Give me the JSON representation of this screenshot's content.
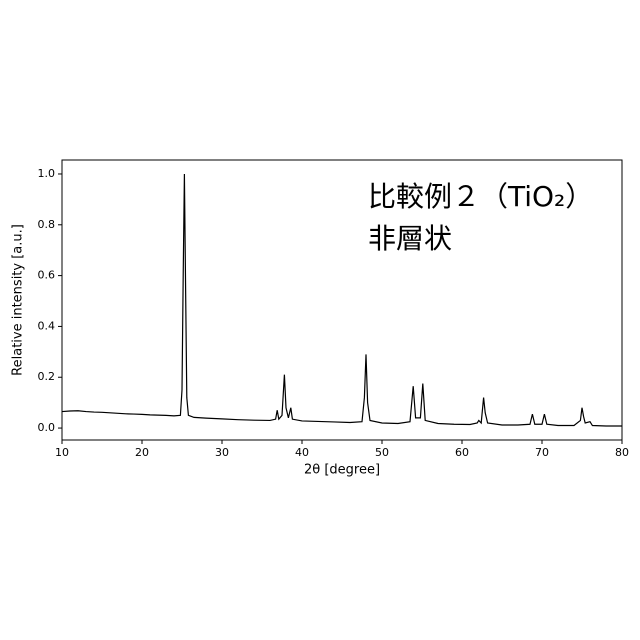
{
  "chart_data": {
    "type": "line",
    "xlabel": "2θ [degree]",
    "ylabel": "Relative intensity [a.u.]",
    "annotations": [
      "比較例２（TiO₂）",
      "非層状"
    ],
    "xlim": [
      10,
      80
    ],
    "ylim": [
      -0.047,
      1.055
    ],
    "xticks": [
      10,
      20,
      30,
      40,
      50,
      60,
      70,
      80
    ],
    "yticks": [
      {
        "value": 0,
        "label": "0.0"
      },
      0.2,
      0.4,
      0.6,
      0.8,
      {
        "value": 1,
        "label": "1.0"
      }
    ],
    "x": [
      10,
      11,
      12,
      13,
      14,
      15,
      16,
      17,
      18,
      19,
      20,
      21,
      22,
      23,
      24,
      24.8,
      25.0,
      25.15,
      25.3,
      25.45,
      25.6,
      25.8,
      26.5,
      28,
      30,
      32,
      34,
      36,
      36.7,
      36.9,
      37.1,
      37.5,
      37.8,
      38.0,
      38.3,
      38.6,
      38.8,
      40,
      42,
      44,
      46,
      47.5,
      47.8,
      48.0,
      48.2,
      48.5,
      50,
      52,
      53.5,
      53.9,
      54.2,
      54.8,
      55.1,
      55.4,
      57,
      59,
      61,
      61.9,
      62.1,
      62.4,
      62.7,
      62.9,
      63.2,
      65,
      67,
      68.5,
      68.8,
      69.1,
      70,
      70.3,
      70.6,
      72,
      74,
      74.8,
      75.0,
      75.2,
      75.4,
      76.0,
      76.3,
      78,
      80
    ],
    "series": [
      {
        "color": "#000000",
        "values": [
          0.065,
          0.067,
          0.068,
          0.065,
          0.063,
          0.062,
          0.06,
          0.058,
          0.056,
          0.055,
          0.054,
          0.052,
          0.051,
          0.05,
          0.048,
          0.05,
          0.15,
          0.6,
          1.0,
          0.55,
          0.12,
          0.05,
          0.042,
          0.039,
          0.036,
          0.033,
          0.031,
          0.03,
          0.035,
          0.07,
          0.035,
          0.05,
          0.21,
          0.08,
          0.04,
          0.08,
          0.035,
          0.028,
          0.026,
          0.024,
          0.022,
          0.025,
          0.12,
          0.29,
          0.1,
          0.03,
          0.02,
          0.018,
          0.025,
          0.165,
          0.04,
          0.04,
          0.175,
          0.03,
          0.018,
          0.015,
          0.014,
          0.02,
          0.03,
          0.02,
          0.12,
          0.06,
          0.02,
          0.012,
          0.012,
          0.015,
          0.055,
          0.015,
          0.015,
          0.055,
          0.015,
          0.01,
          0.01,
          0.03,
          0.08,
          0.045,
          0.02,
          0.025,
          0.01,
          0.008,
          0.008
        ]
      }
    ]
  }
}
